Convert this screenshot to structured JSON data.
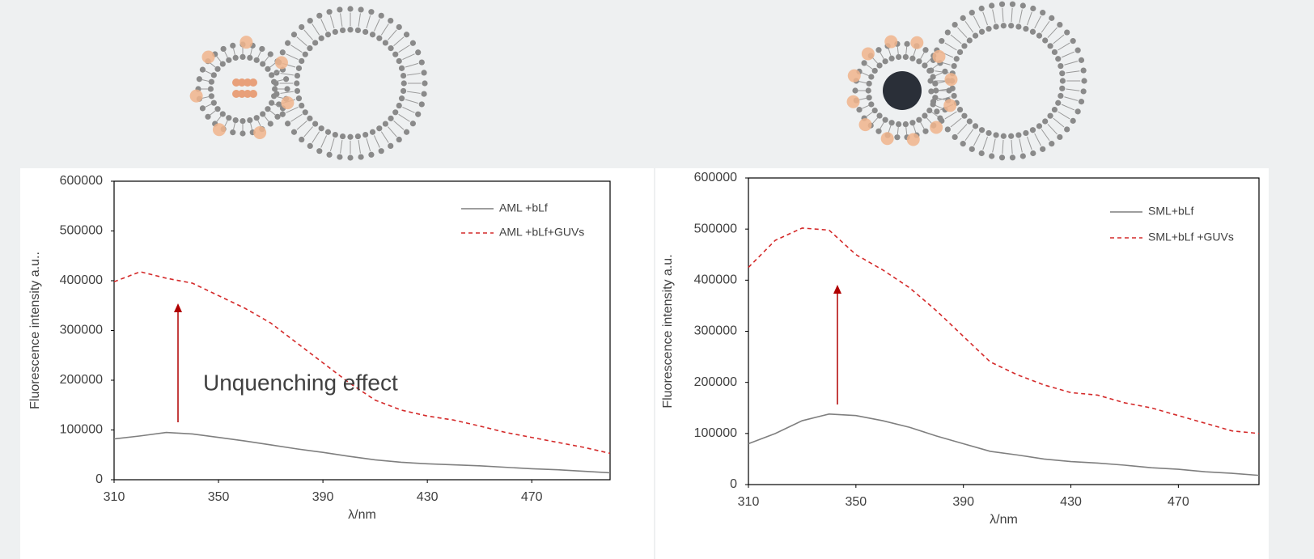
{
  "chart_data": [
    {
      "type": "line",
      "xlabel": "λ/nm",
      "ylabel": "Fluorescence intensity a.u..",
      "annotation": "Unquenching effect",
      "x": [
        310,
        320,
        330,
        340,
        350,
        360,
        370,
        380,
        390,
        400,
        410,
        420,
        430,
        440,
        450,
        460,
        470,
        480,
        490,
        500
      ],
      "series": [
        {
          "name": "AML +bLf",
          "color": "#7f7f7f",
          "dash": false,
          "values": [
            82000,
            88000,
            95000,
            92000,
            85000,
            78000,
            70000,
            62000,
            55000,
            47000,
            40000,
            35000,
            32000,
            30000,
            28000,
            25000,
            22000,
            20000,
            17000,
            14000
          ]
        },
        {
          "name": "AML +bLf+GUVs",
          "color": "#d42a2a",
          "dash": true,
          "values": [
            398000,
            418000,
            405000,
            395000,
            370000,
            345000,
            315000,
            275000,
            235000,
            195000,
            160000,
            140000,
            128000,
            120000,
            108000,
            95000,
            85000,
            75000,
            65000,
            53000
          ]
        }
      ],
      "xlim": [
        310,
        500
      ],
      "xticks": [
        310,
        350,
        390,
        430,
        470
      ],
      "ylim": [
        0,
        600000
      ],
      "yticks": [
        0,
        100000,
        200000,
        300000,
        400000,
        500000,
        600000
      ]
    },
    {
      "type": "line",
      "xlabel": "λ/nm",
      "ylabel": "Fluorescence intensity a.u.",
      "x": [
        310,
        320,
        330,
        340,
        350,
        360,
        370,
        380,
        390,
        400,
        410,
        420,
        430,
        440,
        450,
        460,
        470,
        480,
        490,
        500
      ],
      "series": [
        {
          "name": "SML+bLf",
          "color": "#7f7f7f",
          "dash": false,
          "values": [
            80000,
            100000,
            125000,
            138000,
            135000,
            125000,
            112000,
            95000,
            80000,
            65000,
            58000,
            50000,
            45000,
            42000,
            38000,
            33000,
            30000,
            25000,
            22000,
            18000
          ]
        },
        {
          "name": "SML+bLf +GUVs",
          "color": "#d42a2a",
          "dash": true,
          "values": [
            425000,
            478000,
            502000,
            498000,
            450000,
            420000,
            385000,
            340000,
            290000,
            240000,
            215000,
            195000,
            180000,
            175000,
            160000,
            150000,
            135000,
            120000,
            105000,
            100000
          ]
        }
      ],
      "xlim": [
        310,
        500
      ],
      "xticks": [
        310,
        350,
        390,
        430,
        470
      ],
      "ylim": [
        0,
        600000
      ],
      "yticks": [
        0,
        100000,
        200000,
        300000,
        400000,
        500000,
        600000
      ]
    }
  ]
}
